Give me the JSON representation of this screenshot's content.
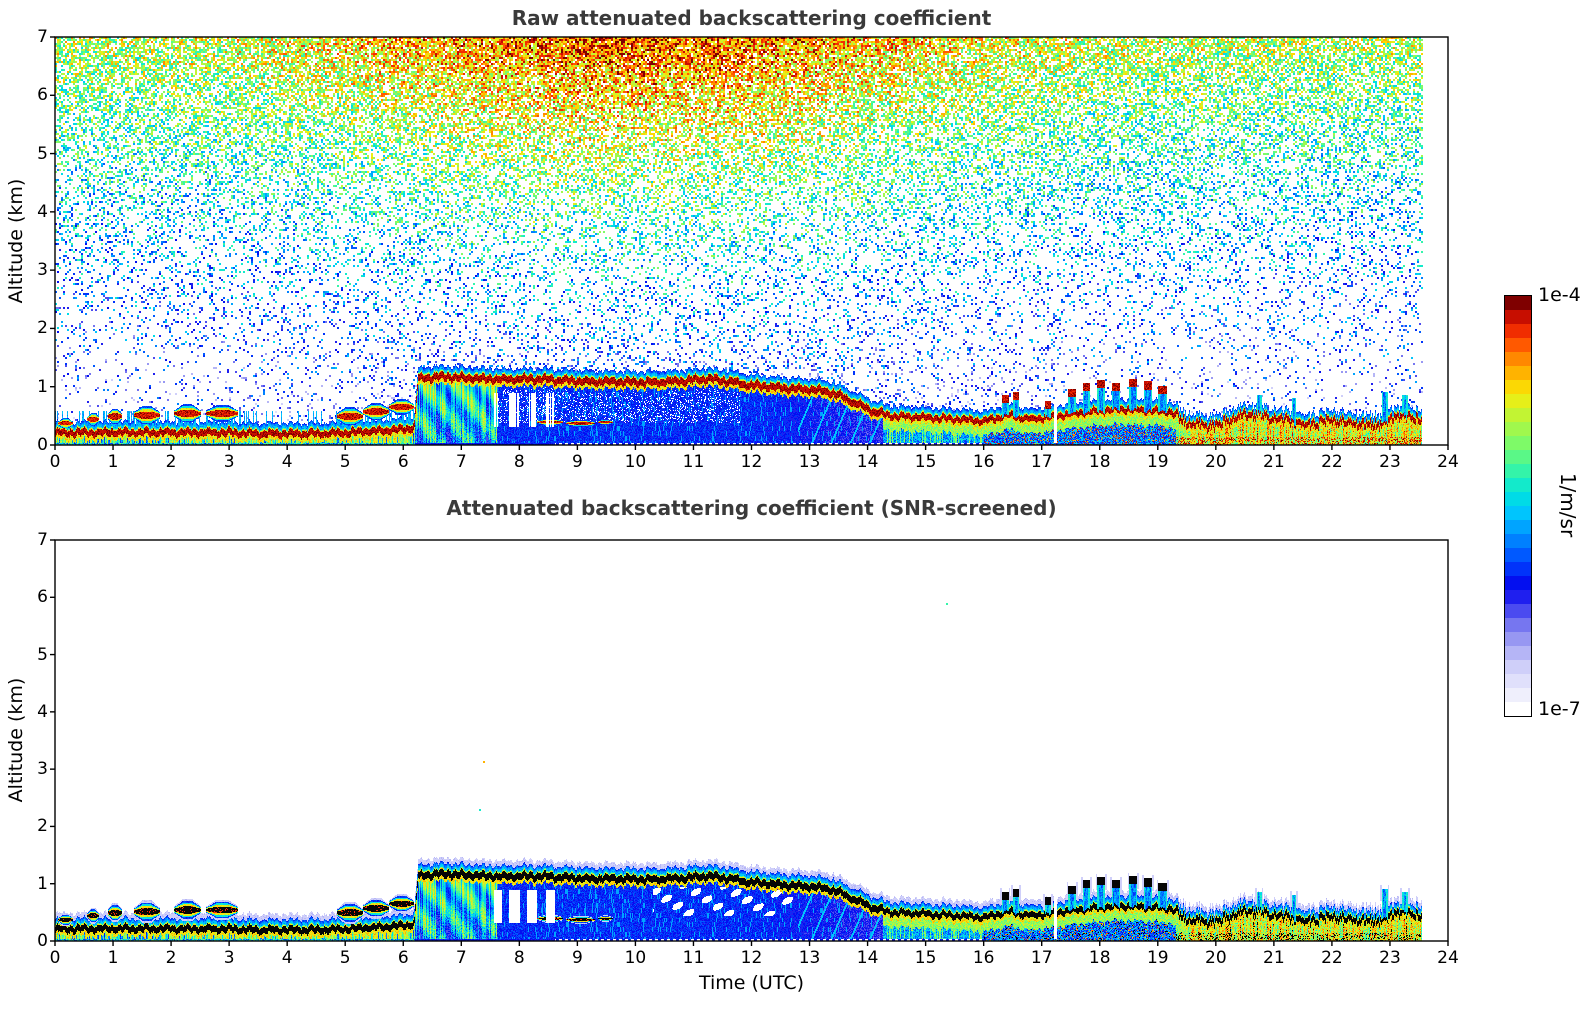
{
  "figure": {
    "background": "#ffffff",
    "colorbar": {
      "top_label": "1e-4",
      "bottom_label": "1e-7",
      "unit_label": "1/m/sr",
      "levels": 30,
      "scale": "log",
      "stops": [
        [
          0.0,
          "#ffffff"
        ],
        [
          0.05,
          "#e9e9fc"
        ],
        [
          0.1,
          "#d2d2fa"
        ],
        [
          0.14,
          "#b4b4f6"
        ],
        [
          0.18,
          "#9191f2"
        ],
        [
          0.22,
          "#6969f0"
        ],
        [
          0.26,
          "#3232f0"
        ],
        [
          0.3,
          "#0404ee"
        ],
        [
          0.36,
          "#0044ff"
        ],
        [
          0.42,
          "#0088ff"
        ],
        [
          0.48,
          "#00c4ff"
        ],
        [
          0.53,
          "#00e4e0"
        ],
        [
          0.58,
          "#2ef4b0"
        ],
        [
          0.64,
          "#70fb74"
        ],
        [
          0.7,
          "#aaf846"
        ],
        [
          0.76,
          "#e8ef18"
        ],
        [
          0.8,
          "#ffd400"
        ],
        [
          0.85,
          "#ff9900"
        ],
        [
          0.9,
          "#ff5500"
        ],
        [
          0.95,
          "#e81500"
        ],
        [
          1.0,
          "#7f0000"
        ]
      ]
    }
  },
  "chart_data": [
    {
      "type": "heatmap",
      "title": "Raw attenuated backscattering coefficient",
      "xlabel": "",
      "ylabel": "Altitude (km)",
      "xlim": [
        0,
        24
      ],
      "ylim": [
        0,
        7
      ],
      "xticks": [
        0,
        1,
        2,
        3,
        4,
        5,
        6,
        7,
        8,
        9,
        10,
        11,
        12,
        13,
        14,
        15,
        16,
        17,
        18,
        19,
        20,
        21,
        22,
        23,
        24
      ],
      "yticks": [
        0,
        1,
        2,
        3,
        4,
        5,
        6,
        7
      ],
      "value_min": "1e-7",
      "value_max": "1e-4",
      "units": "1/m/sr",
      "data_end_hour": 23.55,
      "description": "Raw ceilometer backscatter: altitude-increasing background noise speckle (strongest and reddest aloft near midday), strong aerosol/cloud layer near the surface, stratus deck near 1.1 km from 06-14 UTC with attenuated blue region beneath.",
      "noise": {
        "solar_peak_hour": 10,
        "solar_width_hours": 5.5,
        "density_at_top": 0.9,
        "density_at_2km": 0.15
      },
      "layer_top_km": {
        "t": [
          0,
          1,
          2,
          3,
          3.5,
          4,
          4.6,
          5,
          5.4,
          5.8,
          6.18,
          6.25,
          6.7,
          7.2,
          7.7,
          8.2,
          8.7,
          9.2,
          9.7,
          10.2,
          10.7,
          11.2,
          11.5,
          12,
          12.5,
          13,
          13.4,
          13.8,
          14.1,
          14.4,
          15,
          15.5,
          16,
          16.4,
          16.8,
          17.2,
          17.6,
          18,
          18.4,
          18.8,
          19.2,
          19.5,
          20,
          20.4,
          20.8,
          21.2,
          21.6,
          22,
          22.4,
          22.8,
          23.2,
          23.55
        ],
        "h": [
          0.22,
          0.22,
          0.22,
          0.22,
          0.2,
          0.2,
          0.2,
          0.22,
          0.24,
          0.26,
          0.3,
          1.15,
          1.18,
          1.15,
          1.13,
          1.14,
          1.12,
          1.1,
          1.09,
          1.08,
          1.1,
          1.14,
          1.12,
          1.03,
          0.99,
          0.96,
          0.9,
          0.72,
          0.58,
          0.5,
          0.48,
          0.45,
          0.42,
          0.52,
          0.45,
          0.5,
          0.55,
          0.6,
          0.62,
          0.6,
          0.58,
          0.38,
          0.34,
          0.5,
          0.52,
          0.42,
          0.36,
          0.42,
          0.38,
          0.36,
          0.52,
          0.42
        ]
      },
      "regimes": {
        "surface_end": 6.2,
        "rain_end": 14.25,
        "warm_start": 19.3
      },
      "cloud_blobs": [
        [
          0.05,
          0.3,
          0.38,
          0.08
        ],
        [
          0.55,
          0.75,
          0.45,
          0.1
        ],
        [
          0.9,
          1.15,
          0.5,
          0.12
        ],
        [
          1.35,
          1.8,
          0.52,
          0.14
        ],
        [
          2.05,
          2.5,
          0.55,
          0.14
        ],
        [
          2.6,
          3.15,
          0.55,
          0.13
        ],
        [
          4.85,
          5.3,
          0.5,
          0.14
        ],
        [
          5.3,
          5.75,
          0.58,
          0.13
        ],
        [
          5.75,
          6.18,
          0.66,
          0.12
        ],
        [
          8.3,
          8.75,
          0.4,
          0.05
        ],
        [
          8.8,
          9.3,
          0.38,
          0.05
        ],
        [
          9.35,
          9.6,
          0.4,
          0.04
        ]
      ],
      "updraft_spikes": [
        [
          16.3,
          16.42,
          0.85,
          1
        ],
        [
          16.5,
          16.6,
          0.9,
          1
        ],
        [
          17.05,
          17.15,
          0.75,
          1
        ],
        [
          17.45,
          17.58,
          0.95,
          1
        ],
        [
          17.7,
          17.82,
          1.05,
          1
        ],
        [
          17.95,
          18.08,
          1.1,
          1
        ],
        [
          18.2,
          18.34,
          1.05,
          1
        ],
        [
          18.5,
          18.64,
          1.12,
          1
        ],
        [
          18.75,
          18.9,
          1.08,
          1
        ],
        [
          19.0,
          19.15,
          1.0,
          1
        ],
        [
          20.7,
          20.78,
          0.85,
          0
        ],
        [
          21.3,
          21.38,
          0.8,
          0
        ],
        [
          22.85,
          22.95,
          0.9,
          0
        ],
        [
          23.2,
          23.3,
          0.85,
          0
        ]
      ],
      "white_gaps": [
        [
          7.55,
          7.7
        ],
        [
          7.82,
          8.0
        ],
        [
          8.12,
          8.3
        ],
        [
          8.45,
          8.6
        ],
        [
          17.2,
          17.26
        ]
      ]
    },
    {
      "type": "heatmap",
      "title": "Attenuated backscattering coefficient (SNR-screened)",
      "xlabel": "Time (UTC)",
      "ylabel": "Altitude (km)",
      "xlim": [
        0,
        24
      ],
      "ylim": [
        0,
        7
      ],
      "xticks": [
        0,
        1,
        2,
        3,
        4,
        5,
        6,
        7,
        8,
        9,
        10,
        11,
        12,
        13,
        14,
        15,
        16,
        17,
        18,
        19,
        20,
        21,
        22,
        23,
        24
      ],
      "yticks": [
        0,
        1,
        2,
        3,
        4,
        5,
        6,
        7
      ],
      "value_min": "1e-7",
      "value_max": "1e-4",
      "units": "1/m/sr",
      "data_end_hour": 23.55,
      "description": "Same scene as top panel with low-SNR noise removed: white background, saturated layer tops rendered black, pale halos around retained signal, screened holes inside the sub-cloud region.",
      "uses_series_from": "chart 0 (identical layer_top_km, cloud_blobs, updraft_spikes, white_gaps)",
      "specks": [
        [
          7.38,
          3.15,
          0.82
        ],
        [
          7.3,
          2.3,
          0.55
        ],
        [
          15.35,
          5.9,
          0.6
        ]
      ]
    }
  ]
}
